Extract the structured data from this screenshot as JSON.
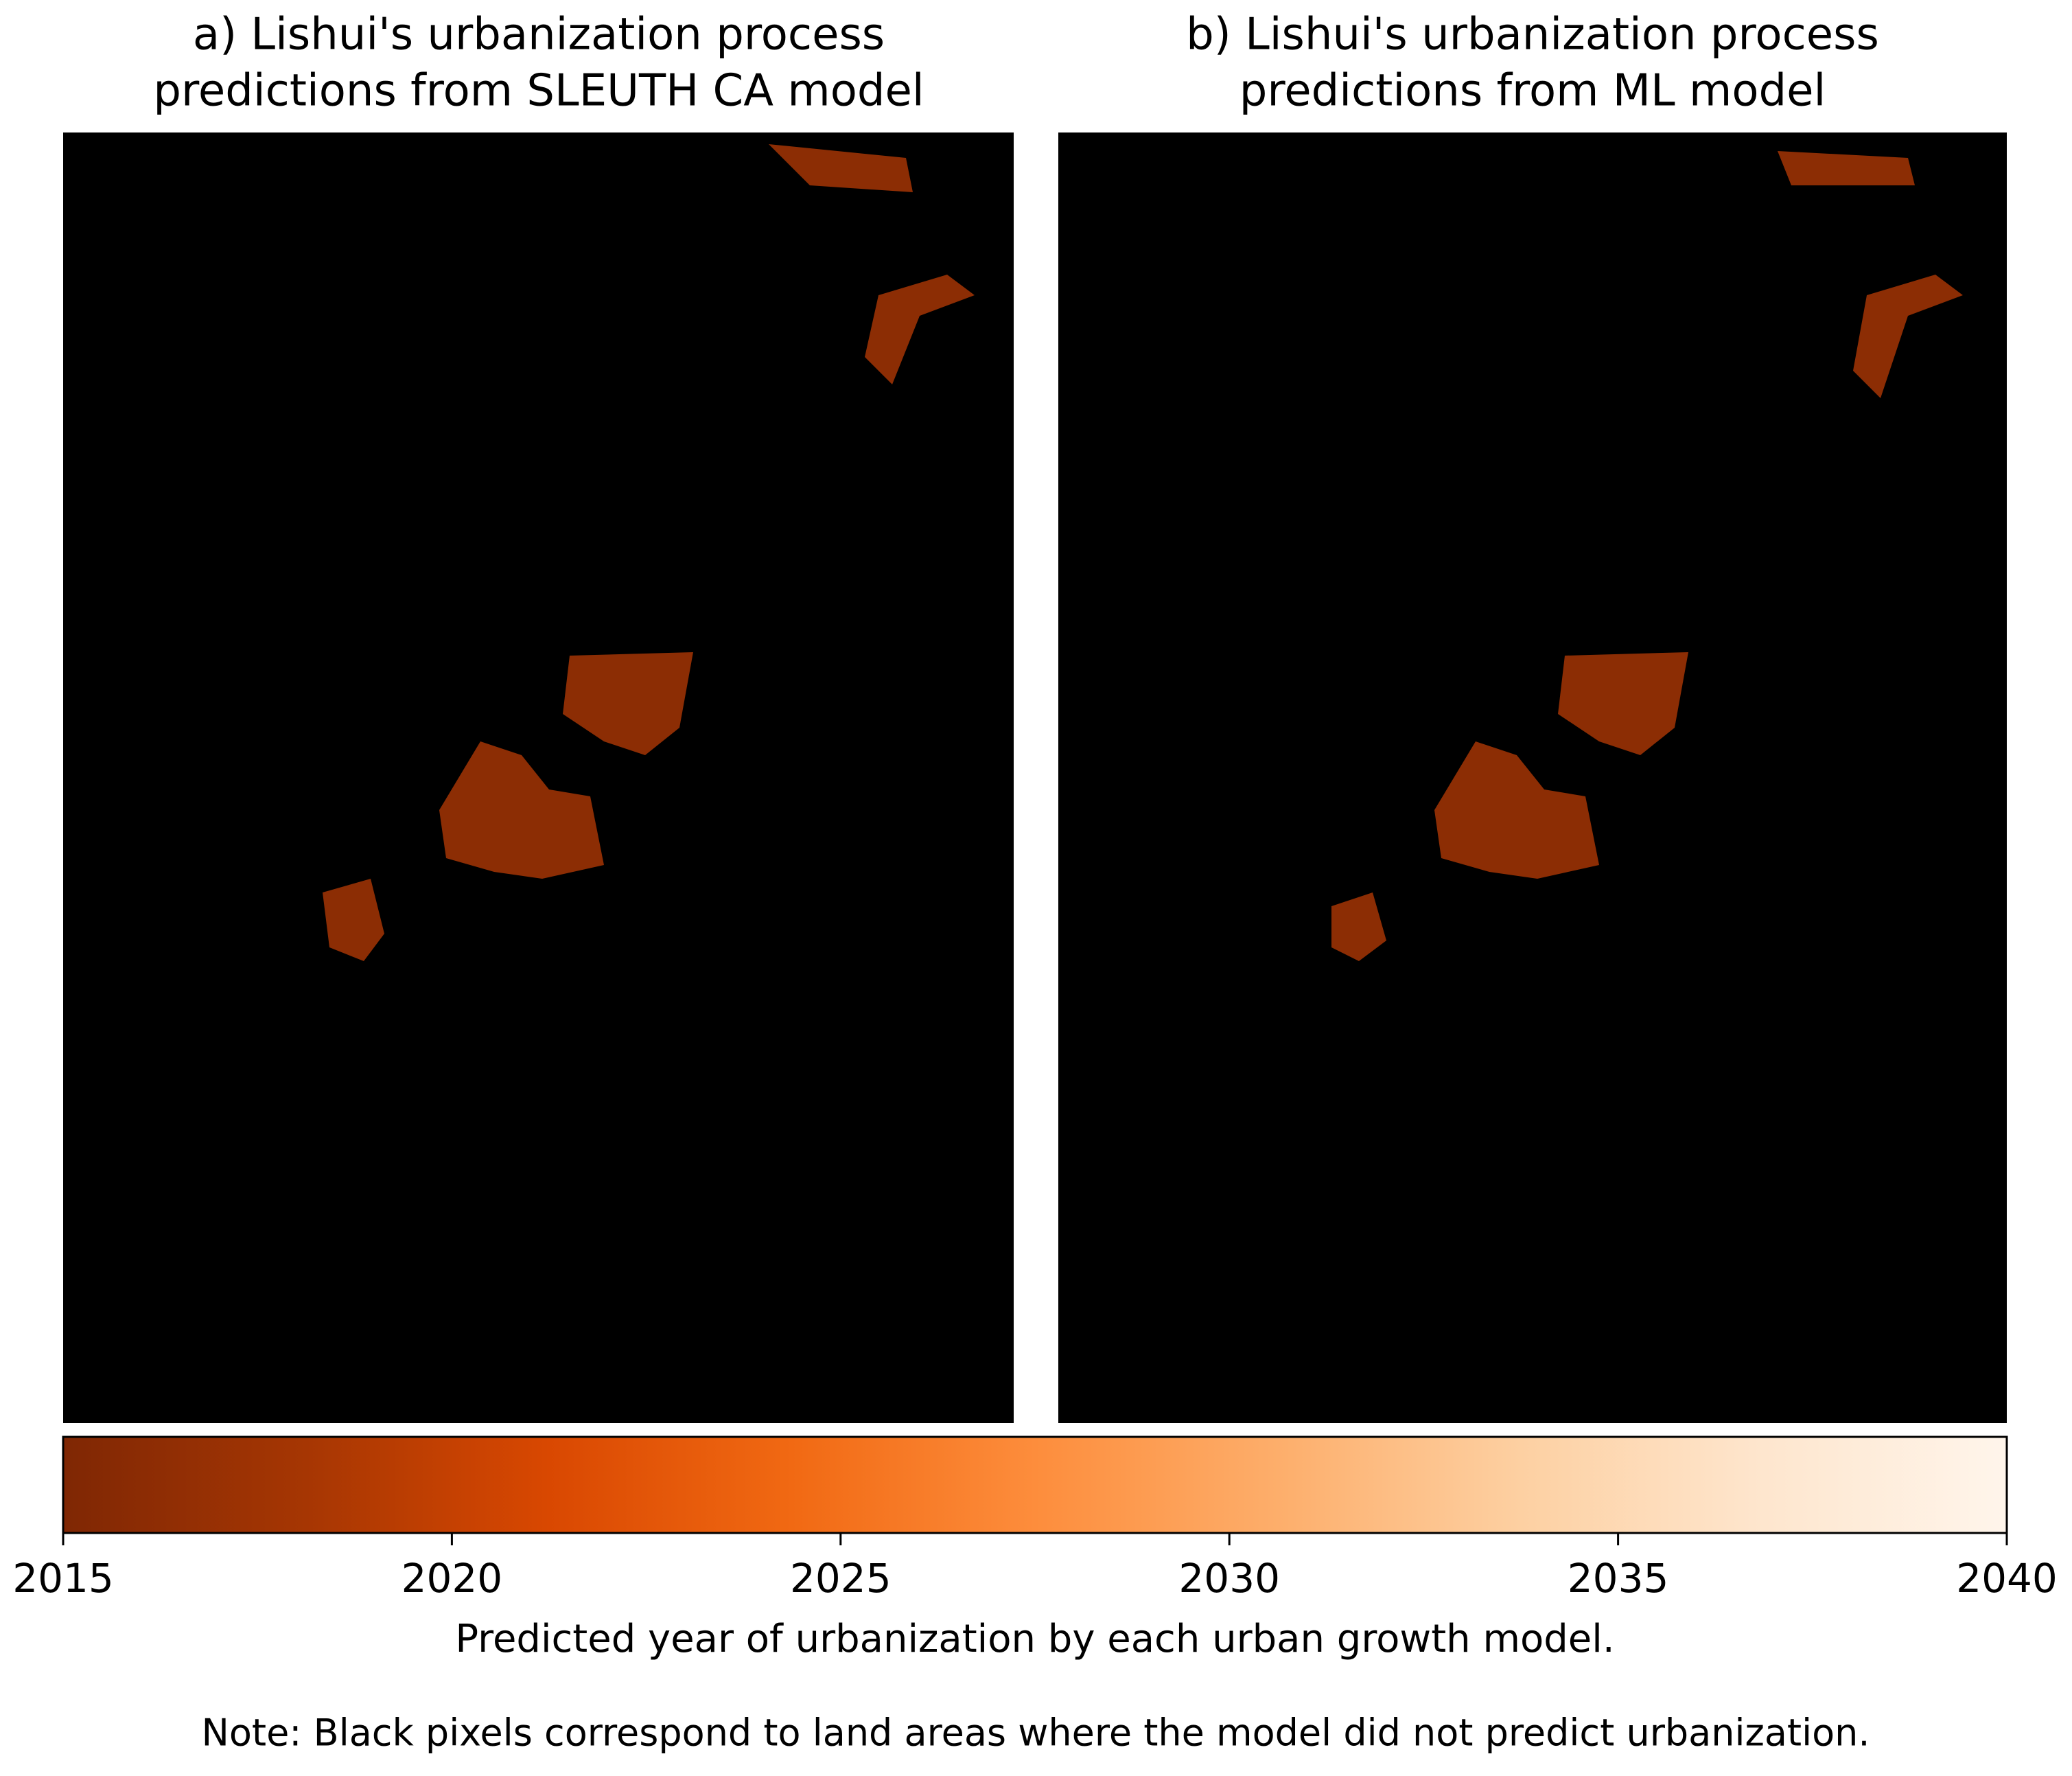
{
  "chart_data": {
    "type": "raster",
    "panels": [
      {
        "title": [
          "a) Lishui's urbanization process",
          "predictions from SLEUTH CA model"
        ]
      },
      {
        "title": [
          "b) Lishui's urbanization process",
          "predictions from ML model"
        ]
      }
    ],
    "background": "#000000",
    "colorbar": {
      "label": "Predicted year of urbanization by each urban growth model.",
      "xlim": [
        2015,
        2040
      ],
      "xticks": [
        2015,
        2020,
        2025,
        2030,
        2035,
        2040
      ],
      "colormap": [
        "#7f2704",
        "#a63603",
        "#d94801",
        "#f16913",
        "#fd8d3c",
        "#fdae6b",
        "#fdd0a2",
        "#fee6ce",
        "#fff5eb"
      ]
    },
    "note": "Note: Black pixels correspond to land areas where the model did not predict urbanization."
  }
}
